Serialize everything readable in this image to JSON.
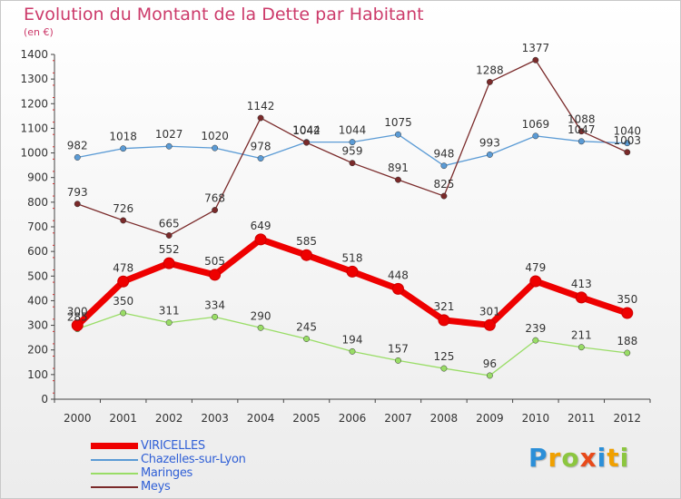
{
  "title": "Evolution du Montant de la Dette par Habitant",
  "unit": "(en €)",
  "logo": {
    "letters": [
      "P",
      "r",
      "o",
      "x",
      "i",
      "t",
      "i"
    ],
    "colors": [
      "#2b8fd8",
      "#f0a000",
      "#8cc63f",
      "#e84a1a",
      "#2b8fd8",
      "#f0a000",
      "#8cc63f"
    ]
  },
  "chart_data": {
    "type": "line",
    "x": [
      "2000",
      "2001",
      "2002",
      "2003",
      "2004",
      "2005",
      "2006",
      "2007",
      "2008",
      "2009",
      "2010",
      "2011",
      "2012"
    ],
    "ylim": [
      0,
      1400
    ],
    "yticks": [
      0,
      100,
      200,
      300,
      400,
      500,
      600,
      700,
      800,
      900,
      1000,
      1100,
      1200,
      1300,
      1400
    ],
    "grid": false,
    "legend_position": "bottom-left",
    "series": [
      {
        "name": "VIRICELLES",
        "color": "#ee0000",
        "values": [
          300,
          478,
          552,
          505,
          649,
          585,
          518,
          448,
          321,
          301,
          479,
          413,
          350
        ]
      },
      {
        "name": "Chazelles-sur-Lyon",
        "color": "#5b9bd5",
        "values": [
          982,
          1018,
          1027,
          1020,
          978,
          1044,
          1044,
          1075,
          948,
          993,
          1069,
          1047,
          1040
        ]
      },
      {
        "name": "Maringes",
        "color": "#99dd66",
        "values": [
          285,
          350,
          311,
          334,
          290,
          245,
          194,
          157,
          125,
          96,
          239,
          211,
          188
        ]
      },
      {
        "name": "Meys",
        "color": "#7a2a2a",
        "values": [
          793,
          726,
          665,
          768,
          1142,
          1042,
          959,
          891,
          825,
          1288,
          1377,
          1088,
          1003
        ]
      }
    ]
  }
}
